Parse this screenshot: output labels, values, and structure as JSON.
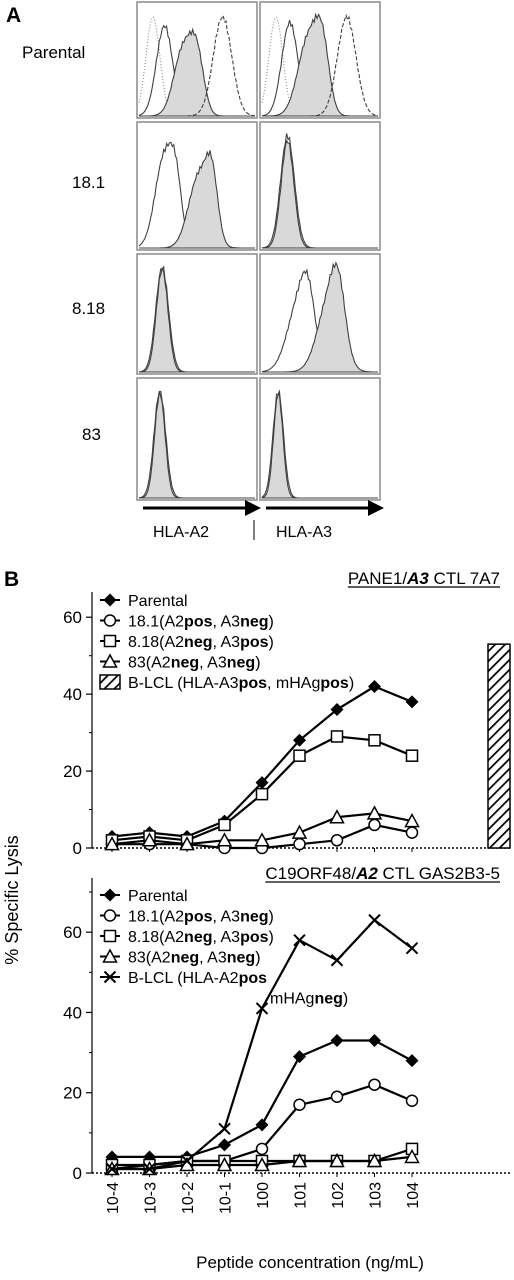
{
  "panel_a": {
    "label": "A",
    "rows": [
      "Parental",
      "18.1",
      "8.18",
      "83"
    ],
    "columns": [
      "HLA-A2",
      "HLA-A3"
    ]
  },
  "panel_b": {
    "label": "B",
    "ylabel": "% Specific Lysis",
    "xlabel": "Peptide concentration (ng/mL)",
    "x_tick_labels": [
      "10-4",
      "10-3",
      "10-2",
      "10-1",
      "100",
      "101",
      "102",
      "103",
      "104"
    ]
  },
  "chart_data": [
    {
      "type": "line",
      "title": "PANE1/A3 CTL 7A7",
      "title_parts": {
        "pre": "PANE1/",
        "em": "A3",
        "post": " CTL 7A7"
      },
      "xlabel": "Peptide concentration (ng/mL)",
      "ylabel": "% Specific Lysis",
      "categories": [
        "10-4",
        "10-3",
        "10-2",
        "10-1",
        "100",
        "101",
        "102",
        "103",
        "104"
      ],
      "ylim": [
        0,
        65
      ],
      "yticks": [
        0,
        20,
        40,
        60
      ],
      "grid": false,
      "legend_position": "top-left",
      "series": [
        {
          "name": "Parental",
          "legend": [
            {
              "t": "Parental",
              "b": false
            }
          ],
          "marker": "diamond-filled",
          "values": [
            3,
            4,
            3,
            7,
            17,
            28,
            36,
            42,
            38
          ]
        },
        {
          "name": "18.1(A2pos, A3neg)",
          "legend": [
            {
              "t": "18.1(A2",
              "b": false
            },
            {
              "t": "pos",
              "b": true
            },
            {
              "t": ", A3",
              "b": false
            },
            {
              "t": "neg",
              "b": true
            },
            {
              "t": ")",
              "b": false
            }
          ],
          "marker": "circle-open",
          "values": [
            1,
            1,
            1,
            0,
            0,
            1,
            2,
            6,
            4
          ]
        },
        {
          "name": "8.18(A2neg, A3pos)",
          "legend": [
            {
              "t": "8.18(A2",
              "b": false
            },
            {
              "t": "neg",
              "b": true
            },
            {
              "t": ", A3",
              "b": false
            },
            {
              "t": "pos",
              "b": true
            },
            {
              "t": ")",
              "b": false
            }
          ],
          "marker": "square-open",
          "values": [
            2,
            3,
            2,
            6,
            14,
            24,
            29,
            28,
            24
          ]
        },
        {
          "name": "83(A2neg, A3neg)",
          "legend": [
            {
              "t": "83(A2",
              "b": false
            },
            {
              "t": "neg",
              "b": true
            },
            {
              "t": ", A3",
              "b": false
            },
            {
              "t": "neg",
              "b": true
            },
            {
              "t": ")",
              "b": false
            }
          ],
          "marker": "triangle-open",
          "values": [
            1,
            2,
            1,
            2,
            2,
            4,
            8,
            9,
            7
          ]
        }
      ],
      "bar": {
        "name": "B-LCL (HLA-A3pos, mHAgpos)",
        "legend": [
          {
            "t": "B-LCL (HLA-A3",
            "b": false
          },
          {
            "t": "pos",
            "b": true
          },
          {
            "t": ", mHAg",
            "b": false
          },
          {
            "t": "pos",
            "b": true
          },
          {
            "t": ")",
            "b": false
          }
        ],
        "pattern": "hatched",
        "value": 53
      }
    },
    {
      "type": "line",
      "title": "C19ORF48/A2 CTL GAS2B3-5",
      "title_parts": {
        "pre": "C19ORF48/",
        "em": "A2",
        "post": " CTL GAS2B3-5"
      },
      "xlabel": "Peptide concentration (ng/mL)",
      "ylabel": "% Specific Lysis",
      "categories": [
        "10-4",
        "10-3",
        "10-2",
        "10-1",
        "100",
        "101",
        "102",
        "103",
        "104"
      ],
      "ylim": [
        0,
        72
      ],
      "yticks": [
        0,
        20,
        40,
        60
      ],
      "grid": false,
      "legend_position": "top-left",
      "series": [
        {
          "name": "Parental",
          "legend": [
            {
              "t": "Parental",
              "b": false
            }
          ],
          "marker": "diamond-filled",
          "values": [
            4,
            4,
            4,
            7,
            12,
            29,
            33,
            33,
            28
          ]
        },
        {
          "name": "18.1(A2pos, A3neg)",
          "legend": [
            {
              "t": "18.1(A2",
              "b": false
            },
            {
              "t": "pos",
              "b": true
            },
            {
              "t": ", A3",
              "b": false
            },
            {
              "t": "neg",
              "b": true
            },
            {
              "t": ")",
              "b": false
            }
          ],
          "marker": "circle-open",
          "values": [
            1,
            2,
            3,
            3,
            6,
            17,
            19,
            22,
            18
          ]
        },
        {
          "name": "8.18(A2neg, A3pos)",
          "legend": [
            {
              "t": "8.18(A2",
              "b": false
            },
            {
              "t": "neg",
              "b": true
            },
            {
              "t": ", A3",
              "b": false
            },
            {
              "t": "pos",
              "b": true
            },
            {
              "t": ")",
              "b": false
            }
          ],
          "marker": "square-open",
          "values": [
            2,
            2,
            3,
            3,
            3,
            3,
            3,
            3,
            6
          ]
        },
        {
          "name": "83(A2neg, A3neg)",
          "legend": [
            {
              "t": "83(A2",
              "b": false
            },
            {
              "t": "neg",
              "b": true
            },
            {
              "t": ", A3",
              "b": false
            },
            {
              "t": "neg",
              "b": true
            },
            {
              "t": ")",
              "b": false
            }
          ],
          "marker": "triangle-open",
          "values": [
            1,
            1,
            2,
            2,
            2,
            3,
            3,
            3,
            4
          ]
        },
        {
          "name": "B-LCL (HLA-A2pos mHAgneg)",
          "legend": [
            {
              "t": "B-LCL (HLA-A2",
              "b": false
            },
            {
              "t": "pos",
              "b": true
            }
          ],
          "legend2": [
            {
              "t": "mHAg",
              "b": false
            },
            {
              "t": "neg",
              "b": true
            },
            {
              "t": ")",
              "b": false
            }
          ],
          "marker": "x",
          "values": [
            1,
            1,
            3,
            11,
            41,
            58,
            53,
            63,
            56
          ]
        }
      ]
    }
  ],
  "colors": {
    "line": "#000000",
    "hist_outline": "#404040",
    "hist_fill": "#d9d9d9",
    "panel_border": "#8a8a8a"
  }
}
